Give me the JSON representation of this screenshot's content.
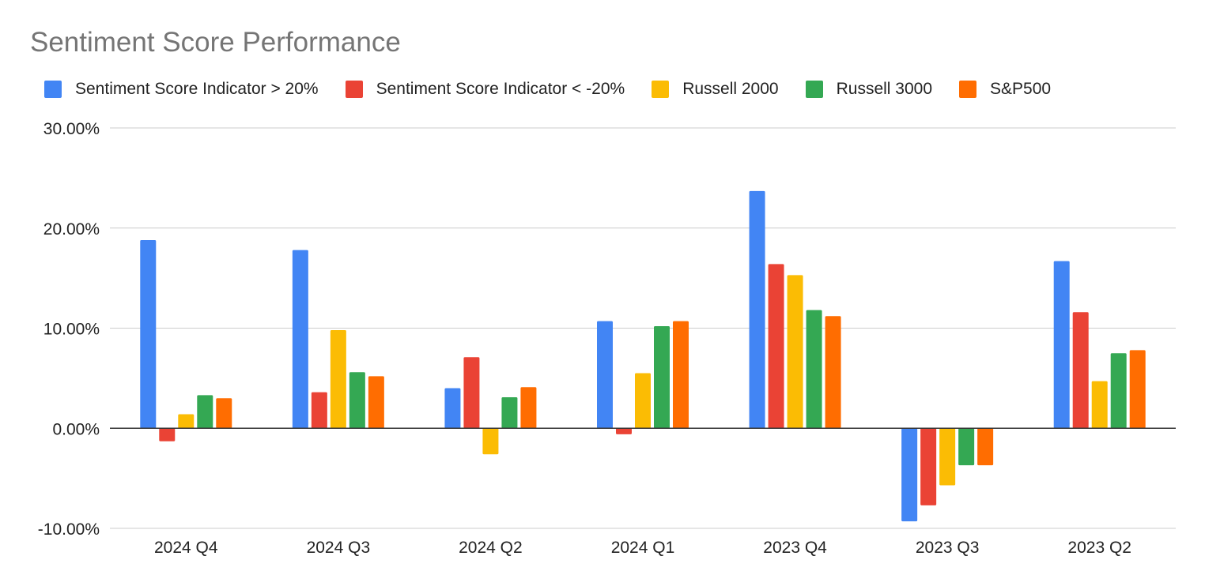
{
  "chart_data": {
    "type": "bar",
    "title": "Sentiment Score Performance",
    "categories": [
      "2024 Q4",
      "2024 Q3",
      "2024 Q2",
      "2024 Q1",
      "2023 Q4",
      "2023 Q3",
      "2023 Q2"
    ],
    "series": [
      {
        "name": "Sentiment Score Indicator > 20%",
        "color": "#4285f4",
        "values": [
          18.8,
          17.8,
          4.0,
          10.7,
          23.7,
          -9.3,
          16.7
        ]
      },
      {
        "name": "Sentiment Score Indicator < -20%",
        "color": "#ea4335",
        "values": [
          -1.3,
          3.6,
          7.1,
          -0.6,
          16.4,
          -7.7,
          11.6
        ]
      },
      {
        "name": "Russell 2000",
        "color": "#fbbc04",
        "values": [
          1.4,
          9.8,
          -2.6,
          5.5,
          15.3,
          -5.7,
          4.7
        ]
      },
      {
        "name": "Russell 3000",
        "color": "#34a853",
        "values": [
          3.3,
          5.6,
          3.1,
          10.2,
          11.8,
          -3.7,
          7.5
        ]
      },
      {
        "name": "S&P500",
        "color": "#ff6d01",
        "values": [
          3.0,
          5.2,
          4.1,
          10.7,
          11.2,
          -3.7,
          7.8
        ]
      }
    ],
    "y_ticks": [
      "30.00%",
      "20.00%",
      "10.00%",
      "0.00%",
      "-10.00%"
    ],
    "y_tick_values": [
      30,
      20,
      10,
      0,
      -10
    ],
    "ylim": [
      -10,
      30
    ],
    "xlabel": "",
    "ylabel": "",
    "grid": true,
    "legend_position": "top-left"
  }
}
